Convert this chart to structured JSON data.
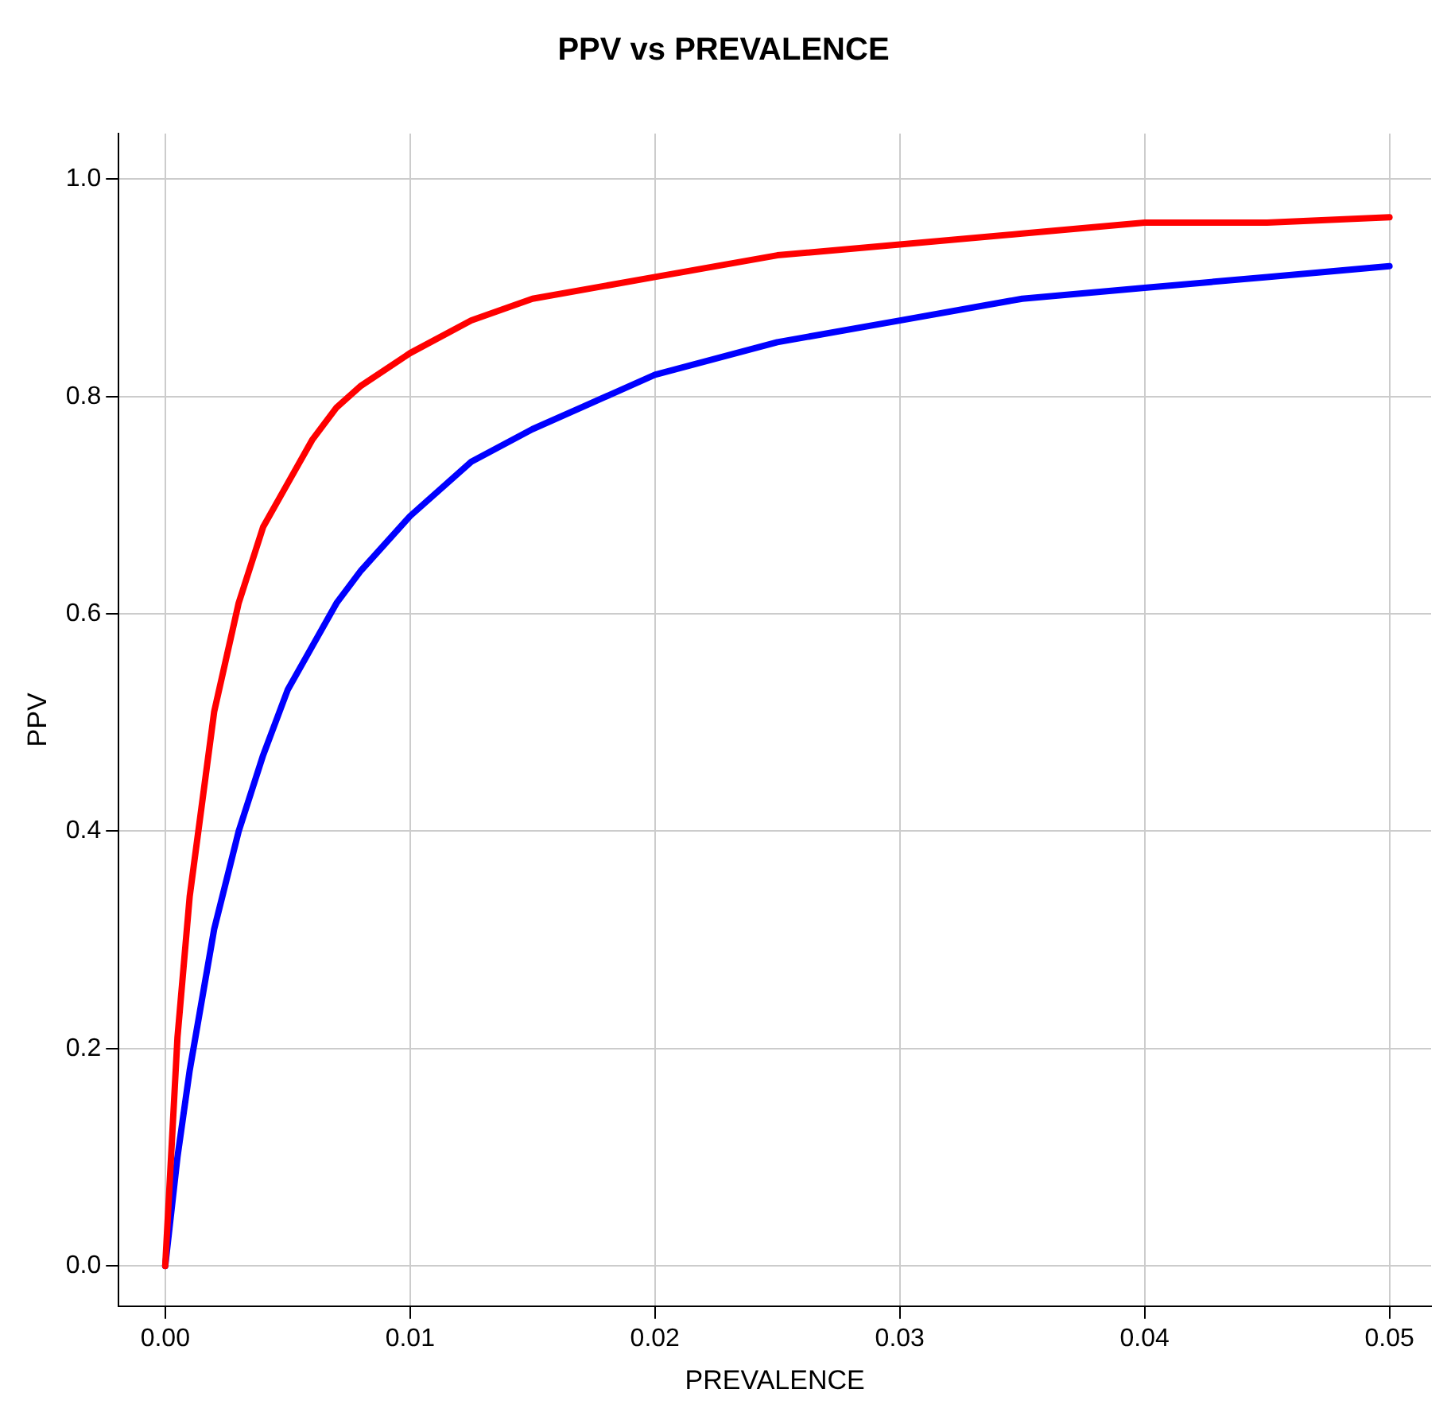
{
  "chart_data": {
    "type": "line",
    "title": "PPV vs PREVALENCE",
    "xlabel": "PREVALENCE",
    "ylabel": "PPV",
    "x": [
      0,
      0.0005,
      0.001,
      0.002,
      0.003,
      0.004,
      0.005,
      0.006,
      0.007,
      0.008,
      0.01,
      0.0125,
      0.015,
      0.02,
      0.025,
      0.03,
      0.035,
      0.04,
      0.045,
      0.05
    ],
    "series": [
      {
        "color": "#ff0000",
        "values": [
          0,
          0.21,
          0.34,
          0.51,
          0.61,
          0.68,
          0.72,
          0.76,
          0.79,
          0.81,
          0.84,
          0.87,
          0.89,
          0.91,
          0.93,
          0.94,
          0.95,
          0.96,
          0.96,
          0.965
        ]
      },
      {
        "color": "#0000ff",
        "values": [
          0,
          0.1,
          0.18,
          0.31,
          0.4,
          0.47,
          0.53,
          0.57,
          0.61,
          0.64,
          0.69,
          0.74,
          0.77,
          0.82,
          0.85,
          0.87,
          0.89,
          0.9,
          0.91,
          0.92
        ]
      }
    ],
    "xlim": [
      -0.0019,
      0.0517
    ],
    "ylim": [
      -0.037,
      1.042
    ],
    "xticks": [
      {
        "value": 0,
        "label": "0.00"
      },
      0.01,
      0.02,
      0.03,
      0.04,
      0.05
    ],
    "yticks": [
      {
        "value": 0,
        "label": "0.0"
      },
      0.2,
      0.4,
      0.6,
      0.8,
      {
        "value": 1,
        "label": "1.0"
      }
    ],
    "grid": true,
    "legend": false,
    "marker": "none",
    "line_style": "solid"
  }
}
